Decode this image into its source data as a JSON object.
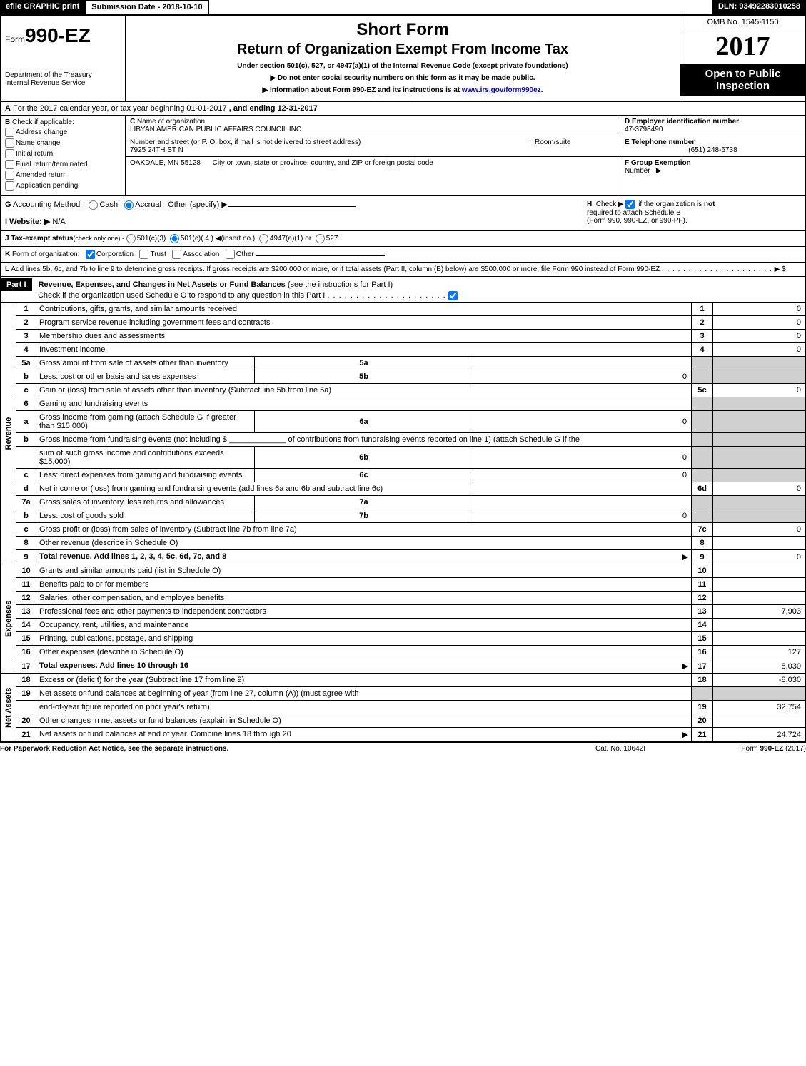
{
  "top": {
    "efile": "efile GRAPHIC print",
    "submission": "Submission Date - 2018-10-10",
    "dln": "DLN: 93492283010258"
  },
  "header": {
    "form_prefix": "Form",
    "form_no": "990-EZ",
    "title": "Short Form",
    "subtitle": "Return of Organization Exempt From Income Tax",
    "under": "Under section 501(c), 527, or 4947(a)(1) of the Internal Revenue Code (except private foundations)",
    "do_not": "▶ Do not enter social security numbers on this form as it may be made public.",
    "info_pre": "▶ Information about Form 990-EZ and its instructions is at ",
    "info_link": "www.irs.gov/form990ez",
    "info_post": ".",
    "dept1": "Department of the Treasury",
    "dept2": "Internal Revenue Service",
    "omb": "OMB No. 1545-1150",
    "year": "2017",
    "open1": "Open to Public",
    "open2": "Inspection"
  },
  "a": {
    "label_a": "A",
    "text1": "For the 2017 calendar year, or tax year beginning 01-01-2017",
    "text2": ", and ending 12-31-2017"
  },
  "b": {
    "label": "B",
    "check_if": "Check if applicable:",
    "addr": "Address change",
    "name": "Name change",
    "init": "Initial return",
    "final": "Final return/terminated",
    "amend": "Amended return",
    "app": "Application pending",
    "c_label": "C",
    "c_name_lbl": "Name of organization",
    "c_name": "LIBYAN AMERICAN PUBLIC AFFAIRS COUNCIL INC",
    "c_street_lbl": "Number and street (or P. O. box, if mail is not delivered to street address)",
    "c_street": "7925 24TH ST N",
    "c_room_lbl": "Room/suite",
    "c_city_lbl": "City or town, state or province, country, and ZIP or foreign postal code",
    "c_city": "OAKDALE, MN  55128",
    "d_label": "D Employer identification number",
    "d_ein": "47-3798490",
    "e_label": "E Telephone number",
    "e_phone": "(651) 248-6738",
    "f_label": "F Group Exemption",
    "f_label2": "Number",
    "f_arrow": "▶"
  },
  "g": {
    "label": "G",
    "acct": "Accounting Method:",
    "cash": "Cash",
    "accr": "Accrual",
    "other": "Other (specify) ▶",
    "h_label": "H",
    "h_text1": "Check ▶",
    "h_text2": "if the organization is",
    "h_not": "not",
    "h_text3": "required to attach Schedule B",
    "h_text4": "(Form 990, 990-EZ, or 990-PF)."
  },
  "i": {
    "label": "I Website: ▶",
    "val": "N/A"
  },
  "j": {
    "label": "J Tax-exempt status",
    "sub": "(check only one) -",
    "o1": "501(c)(3)",
    "o2": "501(c)( 4 ) ◀(insert no.)",
    "o3": "4947(a)(1) or",
    "o4": "527"
  },
  "k": {
    "label": "K",
    "text": "Form of organization:",
    "corp": "Corporation",
    "trust": "Trust",
    "assoc": "Association",
    "other": "Other"
  },
  "l": {
    "label": "L",
    "text": "Add lines 5b, 6c, and 7b to line 9 to determine gross receipts. If gross receipts are $200,000 or more, or if total assets (Part II, column (B) below) are $500,000 or more, file Form 990 instead of Form 990-EZ",
    "arrow": "▶ $"
  },
  "part1": {
    "hdr": "Part I",
    "title": "Revenue, Expenses, and Changes in Net Assets or Fund Balances",
    "see": "(see the instructions for Part I)",
    "check": "Check if the organization used Schedule O to respond to any question in this Part I"
  },
  "sections": {
    "revenue": "Revenue",
    "expenses": "Expenses",
    "net": "Net Assets"
  },
  "rows": [
    {
      "n": "1",
      "d": "Contributions, gifts, grants, and similar amounts received",
      "ln": "1",
      "amt": "0"
    },
    {
      "n": "2",
      "d": "Program service revenue including government fees and contracts",
      "ln": "2",
      "amt": "0"
    },
    {
      "n": "3",
      "d": "Membership dues and assessments",
      "ln": "3",
      "amt": "0"
    },
    {
      "n": "4",
      "d": "Investment income",
      "ln": "4",
      "amt": "0"
    },
    {
      "n": "5a",
      "d": "Gross amount from sale of assets other than inventory",
      "sub": "5a",
      "sv": ""
    },
    {
      "n": "b",
      "d": "Less: cost or other basis and sales expenses",
      "sub": "5b",
      "sv": "0"
    },
    {
      "n": "c",
      "d": "Gain or (loss) from sale of assets other than inventory (Subtract line 5b from line 5a)",
      "ln": "5c",
      "amt": "0"
    },
    {
      "n": "6",
      "d": "Gaming and fundraising events"
    },
    {
      "n": "a",
      "d": "Gross income from gaming (attach Schedule G if greater than $15,000)",
      "sub": "6a",
      "sv": "0"
    },
    {
      "n": "b",
      "d": "Gross income from fundraising events (not including $ _____________ of contributions from fundraising events reported on line 1) (attach Schedule G if the"
    },
    {
      "n": "",
      "d": "sum of such gross income and contributions exceeds $15,000)",
      "sub": "6b",
      "sv": "0"
    },
    {
      "n": "c",
      "d": "Less: direct expenses from gaming and fundraising events",
      "sub": "6c",
      "sv": "0"
    },
    {
      "n": "d",
      "d": "Net income or (loss) from gaming and fundraising events (add lines 6a and 6b and subtract line 6c)",
      "ln": "6d",
      "amt": "0"
    },
    {
      "n": "7a",
      "d": "Gross sales of inventory, less returns and allowances",
      "sub": "7a",
      "sv": ""
    },
    {
      "n": "b",
      "d": "Less: cost of goods sold",
      "sub": "7b",
      "sv": "0"
    },
    {
      "n": "c",
      "d": "Gross profit or (loss) from sales of inventory (Subtract line 7b from line 7a)",
      "ln": "7c",
      "amt": "0"
    },
    {
      "n": "8",
      "d": "Other revenue (describe in Schedule O)",
      "ln": "8",
      "amt": ""
    },
    {
      "n": "9",
      "d": "Total revenue. Add lines 1, 2, 3, 4, 5c, 6d, 7c, and 8",
      "ln": "9",
      "amt": "0",
      "bold": true,
      "arrow": true
    }
  ],
  "exp_rows": [
    {
      "n": "10",
      "d": "Grants and similar amounts paid (list in Schedule O)",
      "ln": "10",
      "amt": ""
    },
    {
      "n": "11",
      "d": "Benefits paid to or for members",
      "ln": "11",
      "amt": ""
    },
    {
      "n": "12",
      "d": "Salaries, other compensation, and employee benefits",
      "ln": "12",
      "amt": ""
    },
    {
      "n": "13",
      "d": "Professional fees and other payments to independent contractors",
      "ln": "13",
      "amt": "7,903"
    },
    {
      "n": "14",
      "d": "Occupancy, rent, utilities, and maintenance",
      "ln": "14",
      "amt": ""
    },
    {
      "n": "15",
      "d": "Printing, publications, postage, and shipping",
      "ln": "15",
      "amt": ""
    },
    {
      "n": "16",
      "d": "Other expenses (describe in Schedule O)",
      "ln": "16",
      "amt": "127"
    },
    {
      "n": "17",
      "d": "Total expenses. Add lines 10 through 16",
      "ln": "17",
      "amt": "8,030",
      "bold": true,
      "arrow": true
    }
  ],
  "net_rows": [
    {
      "n": "18",
      "d": "Excess or (deficit) for the year (Subtract line 17 from line 9)",
      "ln": "18",
      "amt": "-8,030"
    },
    {
      "n": "19",
      "d": "Net assets or fund balances at beginning of year (from line 27, column (A)) (must agree with"
    },
    {
      "n": "",
      "d": "end-of-year figure reported on prior year's return)",
      "ln": "19",
      "amt": "32,754"
    },
    {
      "n": "20",
      "d": "Other changes in net assets or fund balances (explain in Schedule O)",
      "ln": "20",
      "amt": ""
    },
    {
      "n": "21",
      "d": "Net assets or fund balances at end of year. Combine lines 18 through 20",
      "ln": "21",
      "amt": "24,724",
      "arrow": true
    }
  ],
  "footer": {
    "left": "For Paperwork Reduction Act Notice, see the separate instructions.",
    "center": "Cat. No. 10642I",
    "right_pre": "Form ",
    "right_form": "990-EZ",
    "right_year": " (2017)"
  }
}
